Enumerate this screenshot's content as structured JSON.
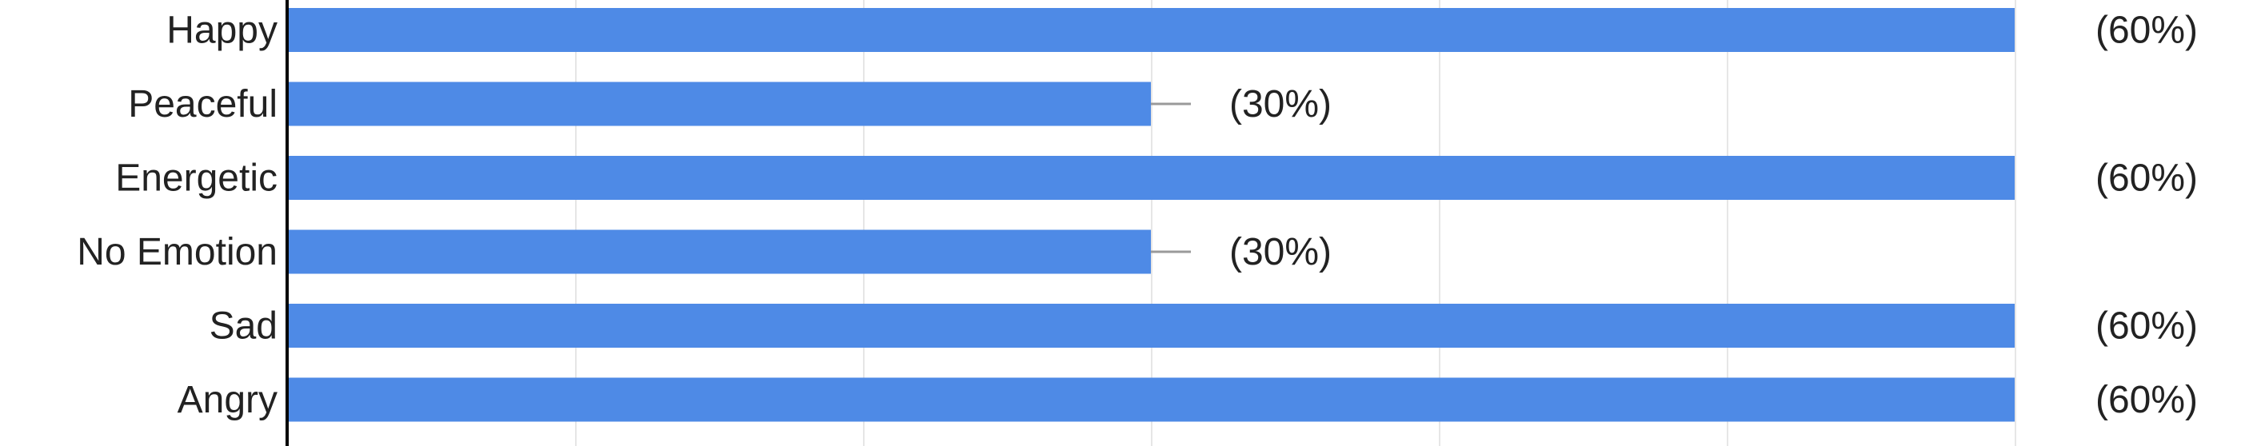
{
  "chart_data": {
    "type": "bar",
    "orientation": "horizontal",
    "categories": [
      "Happy",
      "Peaceful",
      "Energetic",
      "No Emotion",
      "Sad",
      "Angry"
    ],
    "series": [
      {
        "values": [
          60,
          30,
          60,
          30,
          60,
          60
        ],
        "labels": [
          "(60%)",
          "(30%)",
          "(60%)",
          "(30%)",
          "(60%)",
          "(60%)"
        ]
      }
    ],
    "xlim": [
      0,
      70
    ],
    "grid": true,
    "bar_color": "#4e8ae6",
    "grid_color": "#e6e6e6",
    "axis_color": "#000000",
    "label_color": "#222222",
    "title": "",
    "xlabel": "",
    "ylabel": ""
  }
}
